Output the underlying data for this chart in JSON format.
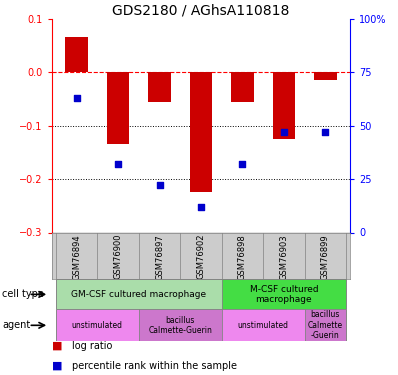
{
  "title": "GDS2180 / AGhsA110818",
  "samples": [
    "GSM76894",
    "GSM76900",
    "GSM76897",
    "GSM76902",
    "GSM76898",
    "GSM76903",
    "GSM76899"
  ],
  "log_ratio": [
    0.065,
    -0.135,
    -0.055,
    -0.225,
    -0.055,
    -0.125,
    -0.015
  ],
  "percentile_rank_pct": [
    63,
    32,
    22,
    12,
    32,
    47,
    47
  ],
  "bar_color": "#cc0000",
  "dot_color": "#0000cc",
  "ylim_left": [
    -0.3,
    0.1
  ],
  "y_left_ticks": [
    -0.3,
    -0.2,
    -0.1,
    0.0,
    0.1
  ],
  "y_right_ticks": [
    0,
    25,
    50,
    75,
    100
  ],
  "y_right_labels": [
    "0",
    "25",
    "50",
    "75",
    "100%"
  ],
  "dotted_lines": [
    -0.1,
    -0.2
  ],
  "cell_type_groups": [
    {
      "label": "GM-CSF cultured macrophage",
      "start": 0,
      "end": 3,
      "color": "#aaddaa"
    },
    {
      "label": "M-CSF cultured\nmacrophage",
      "start": 4,
      "end": 6,
      "color": "#44dd44"
    }
  ],
  "agent_groups": [
    {
      "label": "unstimulated",
      "start": 0,
      "end": 1,
      "color": "#ee88ee"
    },
    {
      "label": "bacillus\nCalmette-Guerin",
      "start": 2,
      "end": 3,
      "color": "#cc77cc"
    },
    {
      "label": "unstimulated",
      "start": 4,
      "end": 5,
      "color": "#ee88ee"
    },
    {
      "label": "bacillus\nCalmette\n-Guerin",
      "start": 6,
      "end": 6,
      "color": "#cc77cc"
    }
  ],
  "tick_fontsize": 7,
  "title_fontsize": 10,
  "bar_width": 0.55
}
